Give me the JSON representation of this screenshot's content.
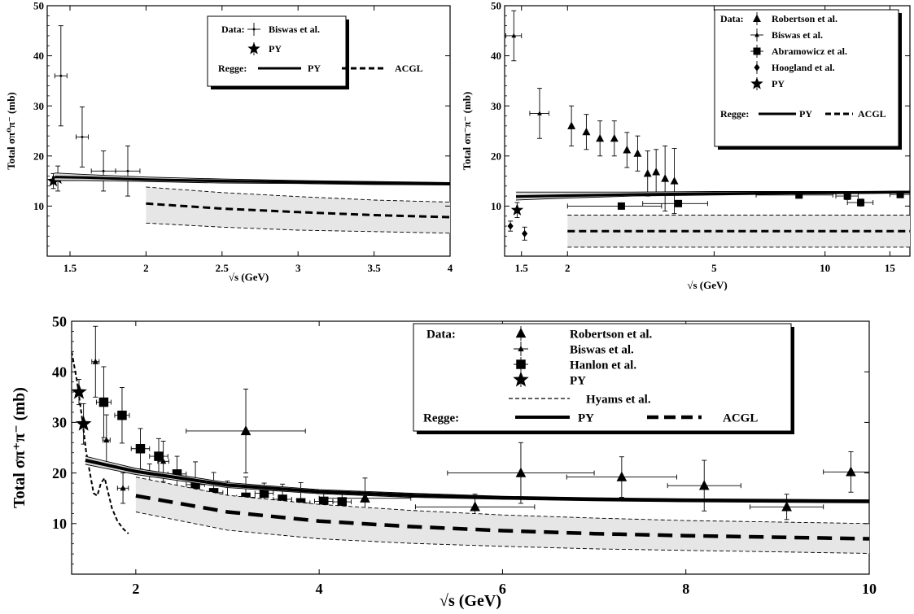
{
  "chart_data": [
    {
      "type": "scatter",
      "xlabel": "√s (GeV)",
      "ylabel": "Total σπ⁰π⁻ (mb)",
      "xlim": [
        1.35,
        4.0
      ],
      "ylim": [
        0,
        50
      ],
      "xscale": "linear",
      "xticks": [
        1.5,
        2,
        2.5,
        3,
        3.5,
        4
      ],
      "xtick_labels": [
        "1.5",
        "2",
        "2.5",
        "3",
        "3.5",
        "4"
      ],
      "yticks": [
        10,
        20,
        30,
        40,
        50
      ],
      "ytick_labels": [
        "10",
        "20",
        "30",
        "40",
        "50"
      ],
      "legend": {
        "position": "top-right",
        "data_label": "Data:",
        "regge_label": "Regge:",
        "entries": [
          "Biswas et al.",
          "PY",
          "PY",
          "ACGL"
        ]
      },
      "series": [
        {
          "name": "Biswas et al.",
          "kind": "points",
          "marker": "cross",
          "x": [
            1.44,
            1.58,
            1.72,
            1.88
          ],
          "y": [
            36,
            23.8,
            17,
            17
          ],
          "yerr": [
            10,
            6,
            4,
            5
          ],
          "xerr": [
            0.04,
            0.04,
            0.08,
            0.08
          ]
        },
        {
          "name": "PY",
          "kind": "points",
          "marker": "star",
          "x": [
            1.39,
            1.42
          ],
          "y": [
            15,
            15.5
          ],
          "yerr": [
            1.5,
            2.5
          ]
        },
        {
          "name": "PY",
          "kind": "band-line",
          "style": "solid",
          "x": [
            1.4,
            1.6,
            2.0,
            2.5,
            3.0,
            3.5,
            4.0
          ],
          "y": [
            15.8,
            15.7,
            15.3,
            15.0,
            14.8,
            14.6,
            14.5
          ],
          "band_low": [
            15.1,
            15.1,
            14.9,
            14.6,
            14.5,
            14.3,
            14.2
          ],
          "band_high": [
            16.6,
            16.3,
            15.8,
            15.4,
            15.1,
            14.9,
            14.7
          ]
        },
        {
          "name": "ACGL",
          "kind": "band-line",
          "style": "dashed",
          "x": [
            2.0,
            2.5,
            3.0,
            3.5,
            4.0
          ],
          "y": [
            10.5,
            9.5,
            8.8,
            8.2,
            7.8
          ],
          "band_low": [
            6.6,
            5.8,
            5.2,
            4.9,
            4.6
          ],
          "band_high": [
            13.8,
            12.7,
            11.9,
            11.2,
            10.8
          ]
        }
      ]
    },
    {
      "type": "scatter",
      "xlabel": "√s (GeV)",
      "ylabel": "Total σπ⁻π⁻ (mb)",
      "xlim": [
        1.35,
        17
      ],
      "ylim": [
        0,
        50
      ],
      "xscale": "log",
      "xticks": [
        1.5,
        2,
        5,
        10,
        15
      ],
      "xtick_labels": [
        "1.5",
        "2",
        "5",
        "10",
        "15"
      ],
      "yticks": [
        10,
        20,
        30,
        40,
        50
      ],
      "ytick_labels": [
        "10",
        "20",
        "30",
        "40",
        "50"
      ],
      "legend": {
        "position": "top-right",
        "data_label": "Data:",
        "regge_label": "Regge:",
        "entries": [
          "Robertson et al.",
          "Biswas et al.",
          "Abramowicz et al.",
          "Hoogland et al.",
          "PY",
          "PY",
          "ACGL"
        ]
      },
      "series": [
        {
          "name": "Robertson et al.",
          "kind": "points",
          "marker": "triangle",
          "x": [
            2.05,
            2.25,
            2.45,
            2.68,
            2.9,
            3.1,
            3.3,
            3.48,
            3.68,
            3.9
          ],
          "y": [
            26,
            24.8,
            23.5,
            23.5,
            21.2,
            20.5,
            16.5,
            16.8,
            15.5,
            15
          ],
          "yerr": [
            4,
            3.5,
            3.5,
            3.5,
            3.5,
            3.5,
            4.5,
            4.5,
            6.5,
            6.5
          ]
        },
        {
          "name": "Biswas et al.",
          "kind": "points",
          "marker": "small-triangle",
          "x": [
            1.43,
            1.68
          ],
          "y": [
            44,
            28.5
          ],
          "yerr": [
            5,
            5
          ],
          "xerr": [
            0.07,
            0.1
          ]
        },
        {
          "name": "Abramowicz et al.",
          "kind": "points",
          "marker": "square",
          "x": [
            2.8,
            4.0,
            8.5,
            11.5,
            12.5,
            16.0
          ],
          "y": [
            10,
            10.5,
            12.2,
            12,
            10.7,
            12.3
          ],
          "yerr": [
            0.4,
            0.4,
            0.5,
            0.7,
            0.7,
            0.5
          ],
          "xerr": [
            0.8,
            0.8,
            2.0,
            0.8,
            1.0,
            1.0
          ]
        },
        {
          "name": "Hoogland et al.",
          "kind": "points",
          "marker": "diamond",
          "x": [
            1.4,
            1.53
          ],
          "y": [
            6,
            4.5
          ],
          "yerr": [
            1,
            1.3
          ]
        },
        {
          "name": "PY",
          "kind": "points",
          "marker": "star",
          "x": [
            1.46
          ],
          "y": [
            9.2
          ],
          "yerr": [
            1.5
          ]
        },
        {
          "name": "PY",
          "kind": "band-line",
          "style": "solid",
          "x": [
            1.45,
            2,
            3,
            5,
            8,
            12,
            17
          ],
          "y": [
            11.9,
            12.1,
            12.3,
            12.5,
            12.6,
            12.7,
            12.8
          ],
          "band_low": [
            11.2,
            11.6,
            12.0,
            12.2,
            12.4,
            12.5,
            12.6
          ],
          "band_high": [
            12.8,
            12.8,
            12.8,
            12.9,
            12.9,
            12.9,
            13.0
          ]
        },
        {
          "name": "ACGL",
          "kind": "band-line",
          "style": "dashed",
          "x": [
            2,
            17
          ],
          "y": [
            5,
            5
          ],
          "band_low": [
            1.8,
            1.8
          ],
          "band_high": [
            8.2,
            8.2
          ]
        }
      ]
    },
    {
      "type": "scatter",
      "xlabel": "√s (GeV)",
      "ylabel": "Total σπ⁺π⁻ (mb)",
      "xlim": [
        1.3,
        10
      ],
      "ylim": [
        0,
        50
      ],
      "xscale": "linear",
      "xticks": [
        2,
        4,
        6,
        8,
        10
      ],
      "xtick_labels": [
        "2",
        "4",
        "6",
        "8",
        "10"
      ],
      "yticks": [
        10,
        20,
        30,
        40,
        50
      ],
      "ytick_labels": [
        "10",
        "20",
        "30",
        "40",
        "50"
      ],
      "legend": {
        "position": "top-right",
        "data_label": "Data:",
        "regge_label": "Regge:",
        "entries": [
          "Robertson et al.",
          "Biswas et al.",
          "Hanlon et al.",
          "PY",
          "Hyams et al.",
          "PY",
          "ACGL"
        ]
      },
      "series": [
        {
          "name": "Robertson et al.",
          "kind": "points",
          "marker": "triangle",
          "x": [
            3.2,
            4.5,
            5.7,
            6.2,
            7.3,
            8.2,
            9.1,
            9.8
          ],
          "y": [
            28.3,
            15,
            13.3,
            20,
            19.2,
            17.5,
            13.3,
            20.2
          ],
          "yerr": [
            8.3,
            4,
            2.5,
            6,
            4,
            5,
            2.5,
            4
          ],
          "xerr": [
            0.65,
            0.5,
            0.65,
            0.8,
            0.6,
            0.4,
            0.4,
            0.3
          ]
        },
        {
          "name": "Biswas et al.",
          "kind": "points",
          "marker": "small-triangle",
          "x": [
            1.56,
            1.68,
            1.86,
            2.15,
            2.3
          ],
          "y": [
            42,
            26.5,
            17,
            17.8,
            22.3
          ],
          "yerr": [
            7,
            5,
            3,
            4,
            4
          ],
          "xerr": [
            0.04,
            0.04,
            0.06,
            0.06,
            0.06
          ]
        },
        {
          "name": "Hanlon et al.",
          "kind": "points",
          "marker": "square",
          "x": [
            1.65,
            1.85,
            2.05,
            2.25,
            2.45,
            2.65,
            2.85,
            3.0,
            3.2,
            3.4,
            3.6,
            3.8,
            4.05,
            4.25
          ],
          "y": [
            34,
            31.4,
            24.8,
            23.3,
            19.8,
            17.7,
            16.1,
            14.4,
            15.2,
            16,
            14.8,
            14.1,
            14.4,
            14.3
          ],
          "yerr": [
            7,
            5.5,
            4,
            3.5,
            3.5,
            4.5,
            4,
            4,
            4,
            2,
            3,
            4,
            2,
            2
          ],
          "xerr": [
            0.08,
            0.08,
            0.1,
            0.1,
            0.1,
            0.1,
            0.1,
            0.1,
            0.1,
            0.1,
            0.1,
            0.1,
            0.1,
            0.1
          ]
        },
        {
          "name": "PY",
          "kind": "points",
          "marker": "star",
          "x": [
            1.38,
            1.43
          ],
          "y": [
            36,
            29.7
          ],
          "yerr": [
            2.5,
            4
          ]
        },
        {
          "name": "Hyams et al.",
          "kind": "line",
          "style": "short-dashed",
          "x": [
            1.3,
            1.36,
            1.42,
            1.46,
            1.5,
            1.54,
            1.58,
            1.62,
            1.66,
            1.7,
            1.74,
            1.8,
            1.86,
            1.92
          ],
          "y": [
            44,
            38,
            30,
            24,
            20,
            16,
            15.5,
            18,
            19,
            16,
            13,
            10.5,
            9,
            8
          ]
        },
        {
          "name": "PY",
          "kind": "band-line",
          "style": "solid",
          "x": [
            1.45,
            2,
            3,
            4,
            5,
            6,
            7,
            8,
            9,
            10
          ],
          "y": [
            22.5,
            20.3,
            17.6,
            16.3,
            15.6,
            15.1,
            14.8,
            14.6,
            14.5,
            14.4
          ],
          "band_low": [
            21.7,
            19.7,
            17.1,
            15.9,
            15.2,
            14.8,
            14.5,
            14.3,
            14.2,
            14.1
          ],
          "band_high": [
            23.3,
            20.9,
            18.1,
            16.7,
            16.0,
            15.4,
            15.1,
            14.9,
            14.8,
            14.7
          ]
        },
        {
          "name": "ACGL",
          "kind": "band-line",
          "style": "dashed",
          "x": [
            2,
            3,
            4,
            5,
            6,
            7,
            8,
            9,
            10
          ],
          "y": [
            15.5,
            12.3,
            10.5,
            9.4,
            8.6,
            8.0,
            7.6,
            7.3,
            7.0
          ],
          "band_low": [
            12.3,
            8.7,
            7.0,
            6.1,
            5.5,
            5.0,
            4.7,
            4.4,
            4.1
          ],
          "band_high": [
            19.2,
            15.6,
            13.8,
            12.6,
            11.7,
            11.1,
            10.6,
            10.3,
            10.0
          ]
        }
      ]
    }
  ]
}
